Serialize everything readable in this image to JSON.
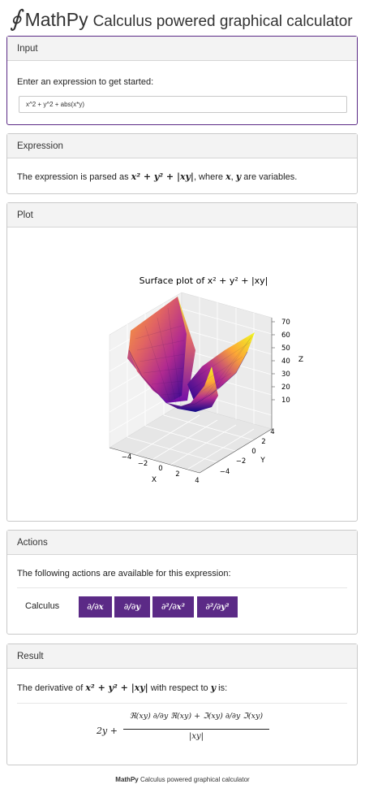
{
  "header": {
    "logo_symbol": "∮",
    "app_name": "MathPy",
    "tagline": "Calculus powered graphical calculator"
  },
  "input_card": {
    "title": "Input",
    "prompt": "Enter an expression to get started:",
    "expression_value": "x^2 + y^2 + abs(x*y)"
  },
  "expression_card": {
    "title": "Expression",
    "text_before": "The expression is parsed as ",
    "expression": "x² + y² + |xy|",
    "text_middle": ", where ",
    "var_x": "x",
    "comma": ", ",
    "var_y": "y",
    "text_after": " are variables."
  },
  "plot_card": {
    "title": "Plot",
    "plot_title": "Surface plot of x² + y² + |xy|",
    "x_label": "X",
    "y_label": "Y",
    "z_label": "Z",
    "x_ticks": [
      "−4",
      "−2",
      "0",
      "2",
      "4"
    ],
    "y_ticks": [
      "−4",
      "−2",
      "0",
      "2",
      "4"
    ],
    "z_ticks": [
      "10",
      "20",
      "30",
      "40",
      "50",
      "60",
      "70"
    ],
    "colormap": [
      "#0d0887",
      "#6a00a8",
      "#b12a90",
      "#e16462",
      "#fca636",
      "#f0f921"
    ]
  },
  "actions_card": {
    "title": "Actions",
    "description": "The following actions are available for this expression:",
    "group_label": "Calculus",
    "buttons": [
      "∂/∂x",
      "∂/∂y",
      "∂²/∂x²",
      "∂²/∂y²"
    ],
    "button_color": "#5b2a86"
  },
  "result_card": {
    "title": "Result",
    "text_before": "The derivative of ",
    "expression": "x² + y² + |xy|",
    "text_middle": " with respect to ",
    "variable": "y",
    "text_after": " is:",
    "lead_term": "2y +",
    "numerator": "ℜ(xy) ∂/∂y ℜ(xy) + ℑ(xy) ∂/∂y ℑ(xy)",
    "denominator": "|xy|"
  },
  "footer": {
    "brand": "MathPy",
    "text": " Calculus powered graphical calculator"
  }
}
